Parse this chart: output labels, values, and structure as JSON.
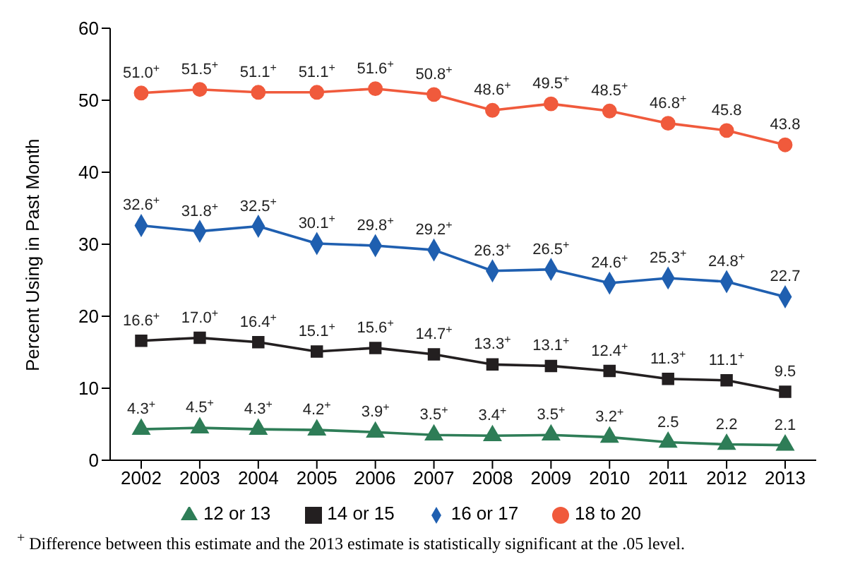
{
  "chart_data": {
    "type": "line",
    "ylabel": "Percent Using in Past Month",
    "categories": [
      "2002",
      "2003",
      "2004",
      "2005",
      "2006",
      "2007",
      "2008",
      "2009",
      "2010",
      "2011",
      "2012",
      "2013"
    ],
    "ylim": [
      0,
      60
    ],
    "yticks": [
      0,
      10,
      20,
      30,
      40,
      50,
      60
    ],
    "grid": false,
    "legend": "bottom",
    "line_style": "solid",
    "series": [
      {
        "name": "12 or 13",
        "color": "#2e7d57",
        "marker": "triangle",
        "values": [
          4.3,
          4.5,
          4.3,
          4.2,
          3.9,
          3.5,
          3.4,
          3.5,
          3.2,
          2.5,
          2.2,
          2.1
        ],
        "value_labels": [
          "4.3$^{+}$",
          "4.5$^{+}$",
          "4.3$^{+}$",
          "4.2$^{+}$",
          "3.9$^{+}$",
          "3.5$^{+}$",
          "3.4$^{+}$",
          "3.5$^{+}$",
          "3.2$^{+}$",
          "2.5",
          "2.2",
          "2.1"
        ]
      },
      {
        "name": "14 or 15",
        "color": "#231f20",
        "marker": "square",
        "values": [
          16.6,
          17.0,
          16.4,
          15.1,
          15.6,
          14.7,
          13.3,
          13.1,
          12.4,
          11.3,
          11.1,
          9.5
        ],
        "value_labels": [
          "16.6$^{+}$",
          "17.0$^{+}$",
          "16.4$^{+}$",
          "15.1$^{+}$",
          "15.6$^{+}$",
          "14.7$^{+}$",
          "13.3$^{+}$",
          "13.1$^{+}$",
          "12.4$^{+}$",
          "11.3$^{+}$",
          "11.1$^{+}$",
          "9.5"
        ]
      },
      {
        "name": "16 or 17",
        "color": "#1f5fb0",
        "marker": "diamond",
        "values": [
          32.6,
          31.8,
          32.5,
          30.1,
          29.8,
          29.2,
          26.3,
          26.5,
          24.6,
          25.3,
          24.8,
          22.7
        ],
        "value_labels": [
          "32.6$^{+}$",
          "31.8$^{+}$",
          "32.5$^{+}$",
          "30.1$^{+}$",
          "29.8$^{+}$",
          "29.2$^{+}$",
          "26.3$^{+}$",
          "26.5$^{+}$",
          "24.6$^{+}$",
          "25.3$^{+}$",
          "24.8$^{+}$",
          "22.7"
        ]
      },
      {
        "name": "18 to 20",
        "color": "#f05a3c",
        "marker": "circle",
        "values": [
          51.0,
          51.5,
          51.1,
          51.1,
          51.6,
          50.8,
          48.6,
          49.5,
          48.5,
          46.8,
          45.8,
          43.8
        ],
        "value_labels": [
          "51.0$^{+}$",
          "51.5$^{+}$",
          "51.1$^{+}$",
          "51.1$^{+}$",
          "51.6$^{+}$",
          "50.8$^{+}$",
          "48.6$^{+}$",
          "49.5$^{+}$",
          "48.5$^{+}$",
          "46.8$^{+}$",
          "45.8",
          "43.8"
        ]
      }
    ],
    "annotations": [
      "$^{+}$ Difference between this estimate and the 2013 estimate is statistically significant at the .05 level."
    ]
  }
}
